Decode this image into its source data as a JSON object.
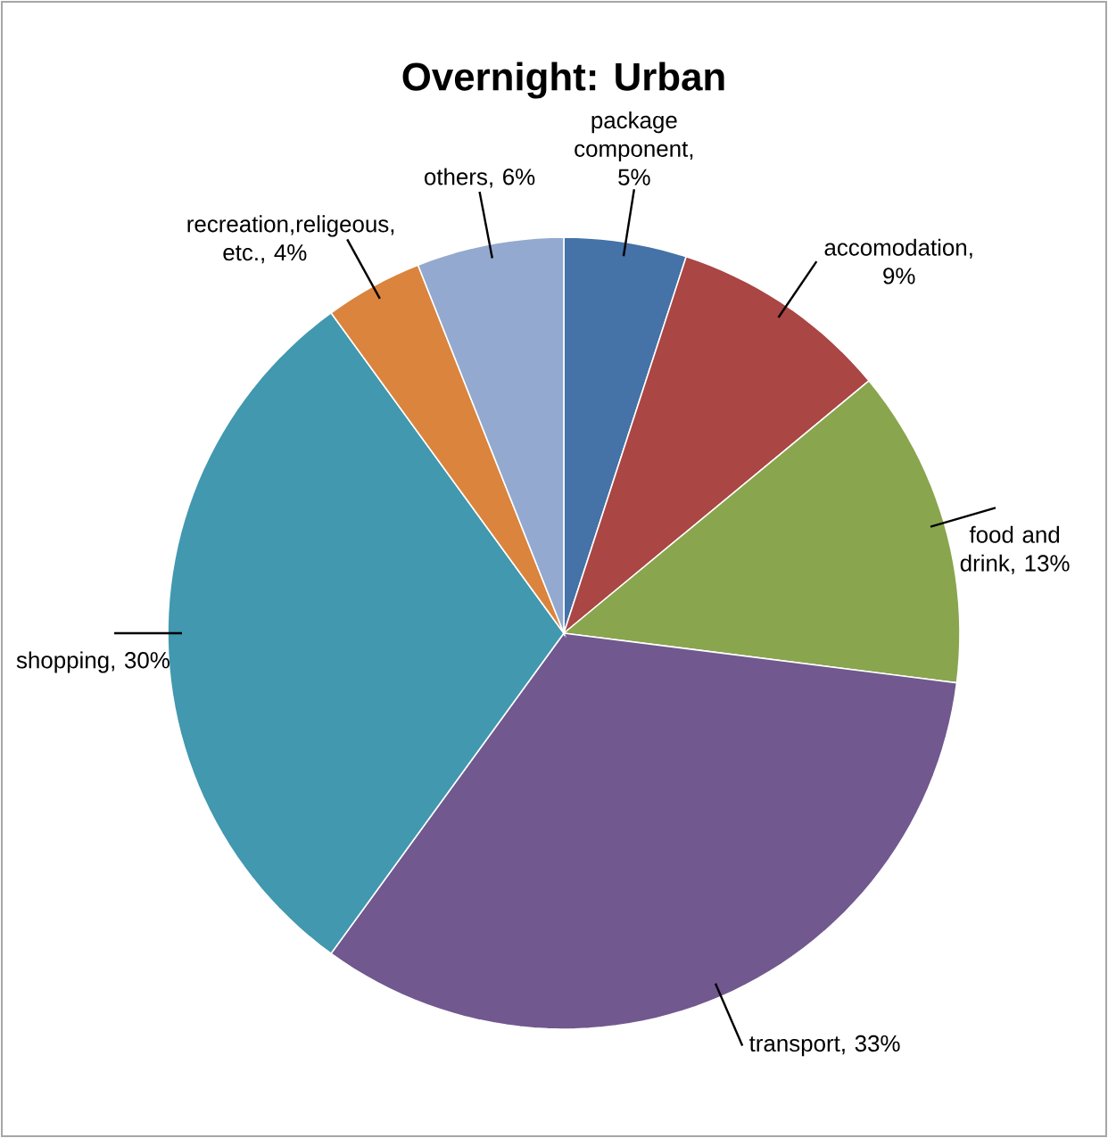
{
  "chart_data": {
    "type": "pie",
    "title": "Overnight: Urban",
    "categories": [
      "package component",
      "accomodation",
      "food and drink",
      "transport",
      "shopping",
      "recreation,religeous, etc.",
      "others"
    ],
    "values": [
      5,
      9,
      13,
      33,
      30,
      4,
      6
    ],
    "value_labels": [
      ", 5%",
      ", 9%",
      ", 13%",
      ", 33%",
      ", 30%",
      ", 4%",
      ", 6%"
    ],
    "colors": [
      "#4572a7",
      "#aa4643",
      "#89a54e",
      "#71588f",
      "#4198af",
      "#db843d",
      "#93a9cf"
    ]
  }
}
